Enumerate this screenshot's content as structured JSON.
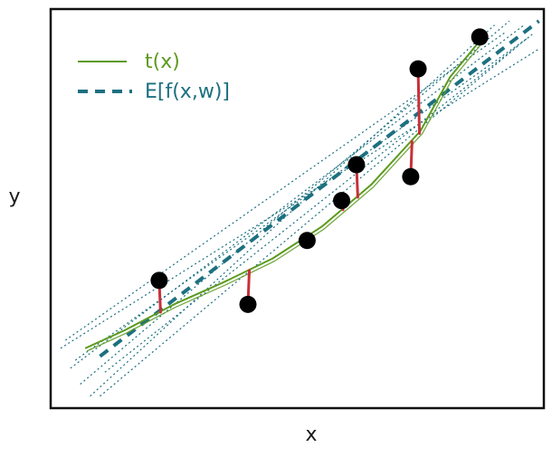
{
  "chart_data": {
    "type": "scatter",
    "xlabel": "x",
    "ylabel": "y",
    "xlim": [
      0,
      10
    ],
    "ylim": [
      0,
      10
    ],
    "grid": false,
    "legend": {
      "placement": "top-left",
      "entries": [
        {
          "label": "t(x)",
          "color": "#5c9a1e",
          "style": "solid"
        },
        {
          "label": "E[f(x,w)]",
          "color": "#1c7080",
          "style": "dashed"
        }
      ]
    },
    "points": [
      {
        "x": 2.2,
        "y": 3.2
      },
      {
        "x": 4.0,
        "y": 2.6
      },
      {
        "x": 5.2,
        "y": 4.2
      },
      {
        "x": 5.9,
        "y": 5.2
      },
      {
        "x": 6.2,
        "y": 6.1
      },
      {
        "x": 7.3,
        "y": 5.8
      },
      {
        "x": 7.45,
        "y": 8.5
      },
      {
        "x": 8.7,
        "y": 9.3
      }
    ],
    "series": [
      {
        "name": "t(x)",
        "color": "#5c9a1e",
        "x": [
          0.7,
          1.5,
          2.5,
          3.5,
          4.5,
          5.5,
          6.5,
          7.5,
          8.1,
          8.7
        ],
        "y": [
          1.5,
          1.95,
          2.6,
          3.15,
          3.75,
          4.55,
          5.6,
          6.95,
          8.3,
          9.2
        ]
      },
      {
        "name": "E[f(x,w)]",
        "color": "#1c7080",
        "x": [
          1.0,
          9.9
        ],
        "y": [
          1.3,
          9.7
        ]
      }
    ],
    "samples": [
      {
        "x": [
          0.2,
          9.9
        ],
        "y": [
          1.5,
          9.0
        ]
      },
      {
        "x": [
          0.4,
          9.6
        ],
        "y": [
          1.0,
          9.6
        ]
      },
      {
        "x": [
          0.6,
          9.3
        ],
        "y": [
          0.6,
          9.7
        ]
      },
      {
        "x": [
          0.8,
          9.0
        ],
        "y": [
          0.3,
          9.6
        ]
      },
      {
        "x": [
          1.0,
          9.5
        ],
        "y": [
          0.3,
          9.1
        ]
      },
      {
        "x": [
          0.3,
          9.2
        ],
        "y": [
          1.7,
          9.4
        ]
      },
      {
        "x": [
          0.5,
          9.7
        ],
        "y": [
          1.2,
          9.3
        ]
      },
      {
        "x": [
          1.1,
          9.8
        ],
        "y": [
          0.9,
          9.4
        ]
      }
    ]
  }
}
